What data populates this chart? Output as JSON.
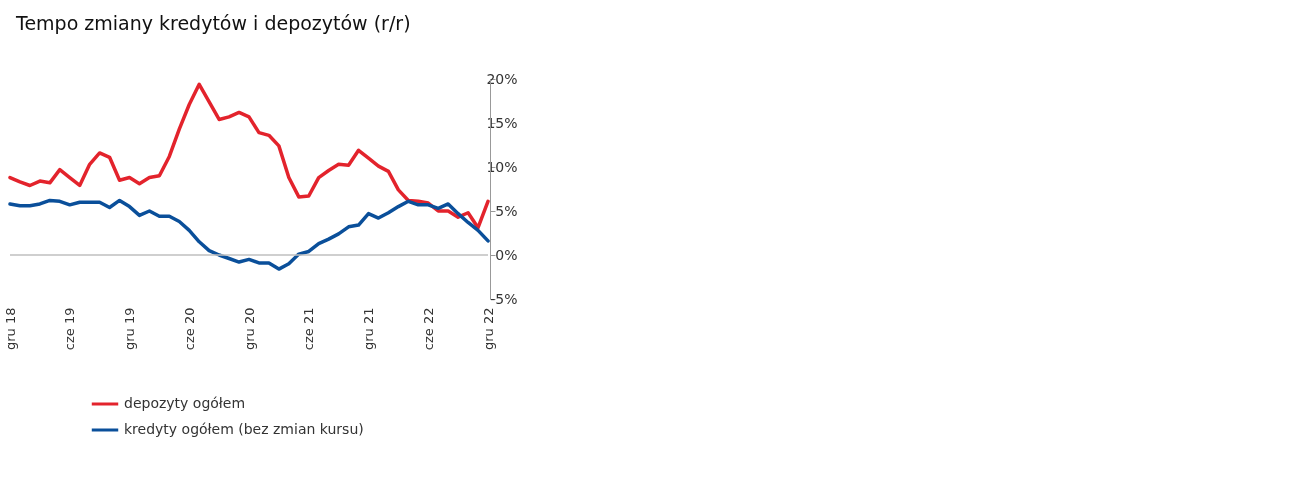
{
  "chart_data": {
    "type": "line",
    "title": "Tempo zmiany kredytów i depozytów (r/r)",
    "categories": [
      "gru 18",
      null,
      null,
      null,
      null,
      null,
      "cze 19",
      null,
      null,
      null,
      null,
      null,
      "gru 19",
      null,
      null,
      null,
      null,
      null,
      "cze 20",
      null,
      null,
      null,
      null,
      null,
      "gru 20",
      null,
      null,
      null,
      null,
      null,
      "cze 21",
      null,
      null,
      null,
      null,
      null,
      "gru 21",
      null,
      null,
      null,
      null,
      null,
      "cze 22",
      null,
      null,
      null,
      null,
      null,
      "gru 22"
    ],
    "series": [
      {
        "name": "depozyty ogółem",
        "color": "#e3232c",
        "values": [
          8.8,
          8.3,
          7.9,
          8.4,
          8.2,
          9.7,
          8.8,
          7.9,
          10.3,
          11.6,
          11.1,
          8.5,
          8.8,
          8.1,
          8.8,
          9.0,
          11.2,
          14.3,
          17.1,
          19.4,
          17.4,
          15.4,
          15.7,
          16.2,
          15.7,
          13.9,
          13.6,
          12.4,
          8.8,
          6.6,
          6.7,
          8.8,
          9.6,
          10.3,
          10.2,
          11.9,
          11.0,
          10.1,
          9.5,
          7.4,
          6.2,
          6.1,
          5.9,
          5.0,
          5.0,
          4.3,
          4.8,
          3.1,
          6.1
        ]
      },
      {
        "name": "kredyty ogółem (bez zmian kursu)",
        "color": "#0a4f9a",
        "values": [
          5.8,
          5.6,
          5.6,
          5.8,
          6.2,
          6.1,
          5.7,
          6.0,
          6.0,
          6.0,
          5.4,
          6.2,
          5.5,
          4.5,
          5.0,
          4.4,
          4.4,
          3.8,
          2.8,
          1.5,
          0.5,
          0.0,
          -0.4,
          -0.8,
          -0.5,
          -0.9,
          -0.9,
          -1.6,
          -1.0,
          0.1,
          0.4,
          1.3,
          1.8,
          2.4,
          3.2,
          3.4,
          4.7,
          4.2,
          4.8,
          5.5,
          6.1,
          5.7,
          5.7,
          5.3,
          5.8,
          4.7,
          3.7,
          2.8,
          1.6
        ]
      }
    ],
    "ylim": [
      -5,
      20
    ],
    "yticks": [
      {
        "value": -5,
        "label": "-5%"
      },
      {
        "value": 0,
        "label": "0%"
      },
      {
        "value": 5,
        "label": "5%"
      },
      {
        "value": 10,
        "label": "10%"
      },
      {
        "value": 15,
        "label": "15%"
      },
      {
        "value": 20,
        "label": "20%"
      }
    ],
    "ref_lines": [
      {
        "axis": "y",
        "value": 0,
        "color": "#bfbfbf"
      }
    ],
    "grid": false,
    "legend": "bottom",
    "marker": "none",
    "line_style": "solid"
  }
}
